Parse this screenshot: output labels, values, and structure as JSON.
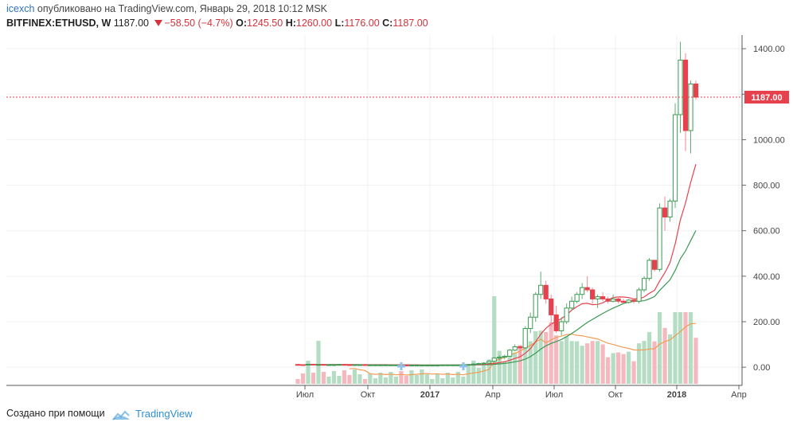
{
  "header": {
    "user": "icexch",
    "published": "опубликовано на TradingView.com, Январь 29, 2018 10:12 MSK",
    "symbol": "BITFINEX:ETHUSD, W",
    "price": "1187.00",
    "change": "−58.50 (−4.7%)",
    "o_label": "O:",
    "o_value": "1245.50",
    "h_label": "H:",
    "h_value": "1260.00",
    "l_label": "L:",
    "l_value": "1176.00",
    "c_label": "C:",
    "c_value": "1187.00"
  },
  "footer": {
    "created_with": "Создано при помощи",
    "brand": "TradingView"
  },
  "colors": {
    "up": "#3a9a52",
    "down": "#e8414e",
    "ma_fast": "#e8414e",
    "ma_slow": "#3a9a52",
    "vol_up": "#b4ddc3",
    "vol_down": "#f5b8bf",
    "vol_ma": "#f39c55",
    "last_price": "#e8414e"
  },
  "chart_data": {
    "type": "candlestick",
    "price_axis": {
      "ticks": [
        0,
        200,
        400,
        600,
        800,
        1000,
        1200,
        1400
      ],
      "tick_labels": [
        "0.00",
        "200.00",
        "400.00",
        "600.00",
        "800.00",
        "1000.00",
        "1200.00",
        "1400.00"
      ],
      "ylim": [
        -80,
        1460
      ]
    },
    "time_axis": {
      "labels": [
        "Июл",
        "Окт",
        "2017",
        "Апр",
        "Июл",
        "Окт",
        "2018",
        "Апр"
      ],
      "bold": [
        "2017",
        "2018"
      ]
    },
    "last_price": 1187,
    "last_price_label": "1187.00",
    "grid": true,
    "candles": [
      [
        12,
        14,
        9,
        11
      ],
      [
        11,
        12,
        8,
        10
      ],
      [
        10,
        14,
        9,
        13
      ],
      [
        13,
        14,
        10,
        11
      ],
      [
        11,
        13,
        10,
        12
      ],
      [
        12,
        13,
        10,
        11
      ],
      [
        11,
        12,
        10,
        11
      ],
      [
        11,
        12,
        10,
        11
      ],
      [
        11,
        12,
        10,
        12
      ],
      [
        12,
        13,
        10,
        11
      ],
      [
        11,
        12,
        9,
        10
      ],
      [
        10,
        12,
        9,
        11
      ],
      [
        11,
        12,
        10,
        11
      ],
      [
        11,
        11,
        9,
        10
      ],
      [
        10,
        11,
        9,
        10
      ],
      [
        10,
        11,
        9,
        10
      ],
      [
        10,
        11,
        9,
        10
      ],
      [
        10,
        11,
        9,
        10
      ],
      [
        10,
        11,
        9,
        10
      ],
      [
        10,
        11,
        9,
        10
      ],
      [
        10,
        11,
        8,
        9
      ],
      [
        9,
        10,
        7,
        8
      ],
      [
        8,
        10,
        7,
        9
      ],
      [
        9,
        10,
        8,
        9
      ],
      [
        9,
        10,
        8,
        9
      ],
      [
        9,
        10,
        8,
        9
      ],
      [
        9,
        10,
        8,
        9
      ],
      [
        9,
        10,
        8,
        9
      ],
      [
        9,
        11,
        8,
        10
      ],
      [
        10,
        11,
        9,
        10
      ],
      [
        10,
        11,
        9,
        10
      ],
      [
        10,
        11,
        9,
        10
      ],
      [
        10,
        11,
        9,
        11
      ],
      [
        11,
        13,
        10,
        12
      ],
      [
        12,
        16,
        11,
        14
      ],
      [
        14,
        20,
        12,
        16
      ],
      [
        16,
        22,
        14,
        18
      ],
      [
        18,
        30,
        16,
        26
      ],
      [
        26,
        45,
        22,
        40
      ],
      [
        40,
        52,
        30,
        44
      ],
      [
        44,
        55,
        35,
        48
      ],
      [
        48,
        80,
        45,
        75
      ],
      [
        75,
        100,
        70,
        90
      ],
      [
        90,
        95,
        50,
        85
      ],
      [
        85,
        180,
        80,
        170
      ],
      [
        170,
        240,
        150,
        220
      ],
      [
        220,
        330,
        200,
        320
      ],
      [
        320,
        420,
        300,
        360
      ],
      [
        360,
        380,
        280,
        300
      ],
      [
        300,
        320,
        180,
        230
      ],
      [
        230,
        270,
        150,
        160
      ],
      [
        160,
        220,
        140,
        200
      ],
      [
        200,
        280,
        190,
        260
      ],
      [
        260,
        310,
        250,
        290
      ],
      [
        290,
        330,
        280,
        320
      ],
      [
        320,
        370,
        300,
        350
      ],
      [
        350,
        400,
        330,
        340
      ],
      [
        340,
        350,
        280,
        300
      ],
      [
        300,
        320,
        260,
        310
      ],
      [
        310,
        330,
        290,
        300
      ],
      [
        300,
        310,
        280,
        290
      ],
      [
        290,
        320,
        285,
        300
      ],
      [
        300,
        310,
        280,
        290
      ],
      [
        290,
        300,
        280,
        285
      ],
      [
        285,
        300,
        280,
        295
      ],
      [
        295,
        300,
        280,
        290
      ],
      [
        290,
        350,
        280,
        340
      ],
      [
        340,
        400,
        330,
        390
      ],
      [
        390,
        480,
        380,
        470
      ],
      [
        470,
        470,
        420,
        430
      ],
      [
        430,
        720,
        420,
        700
      ],
      [
        700,
        750,
        600,
        660
      ],
      [
        660,
        740,
        640,
        730
      ],
      [
        730,
        1160,
        700,
        1110
      ],
      [
        1110,
        1430,
        1030,
        1350
      ],
      [
        1350,
        1380,
        950,
        1040
      ],
      [
        1040,
        1260,
        940,
        1245
      ],
      [
        1245,
        1260,
        1176,
        1187
      ]
    ],
    "ma_fast": [],
    "ma_slow": []
  }
}
